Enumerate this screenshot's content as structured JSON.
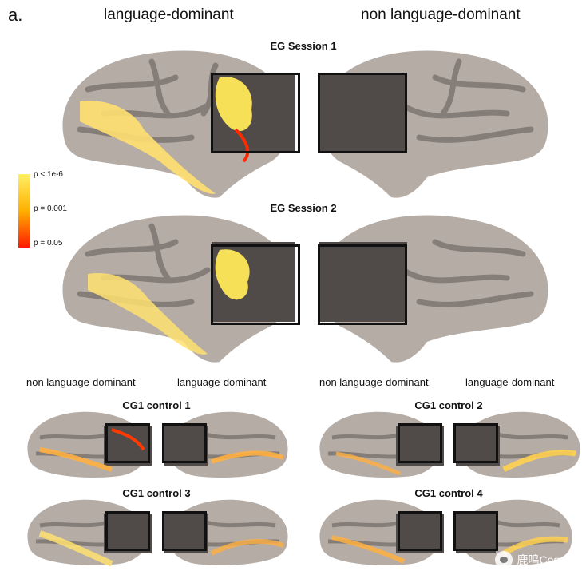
{
  "panel_label": "a.",
  "column_headers": [
    "language-dominant",
    "non language-dominant"
  ],
  "sessions": [
    {
      "title": "EG Session 1"
    },
    {
      "title": "EG Session 2"
    }
  ],
  "colorbar": {
    "labels": [
      "p < 1e-6",
      "p = 0.001",
      "p = 0.05"
    ],
    "colors": [
      "#fff066",
      "#ffb000",
      "#ff1a00"
    ]
  },
  "hemisphere_labels": [
    "non language-dominant",
    "language-dominant",
    "non language-dominant",
    "language-dominant"
  ],
  "controls": [
    {
      "title": "CG1 control 1"
    },
    {
      "title": "CG1 control 2"
    },
    {
      "title": "CG1 control 3"
    },
    {
      "title": "CG1 control 4"
    }
  ],
  "watermark": {
    "icon": "wechat-icon",
    "text": "鹿鸣Cogn"
  },
  "colors": {
    "cortex_light": "#b5aca6",
    "cortex_dark": "#857d78",
    "roi_fill": "#504b48",
    "box_stroke": "#111111"
  }
}
